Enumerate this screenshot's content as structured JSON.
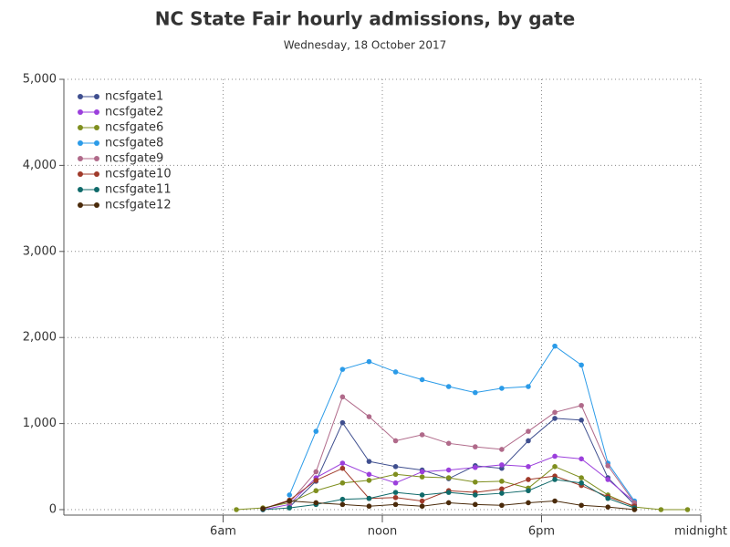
{
  "chart_data": {
    "type": "line",
    "title": "NC State Fair hourly admissions, by gate",
    "subtitle": "Wednesday, 18 October 2017",
    "x": [
      6.5,
      7.5,
      8.5,
      9.5,
      10.5,
      11.5,
      12.5,
      13.5,
      14.5,
      15.5,
      16.5,
      17.5,
      18.5,
      19.5,
      20.5,
      21.5,
      22.5,
      23.5
    ],
    "xlim": [
      0,
      24
    ],
    "xticks": [
      {
        "value": 6,
        "label": "6am"
      },
      {
        "value": 12,
        "label": "noon"
      },
      {
        "value": 18,
        "label": "6pm"
      },
      {
        "value": 24,
        "label": "midnight"
      }
    ],
    "ylim": [
      0,
      5000
    ],
    "yticks": [
      0,
      {
        "value": 1000,
        "label": "1,000"
      },
      {
        "value": 2000,
        "label": "2,000"
      },
      {
        "value": 3000,
        "label": "3,000"
      },
      {
        "value": 4000,
        "label": "4,000"
      },
      {
        "value": 5000,
        "label": "5,000"
      }
    ],
    "grid": true,
    "legend": "top-left",
    "series": [
      {
        "name": "ncsfgate1",
        "color": "#3f4f8f",
        "values": [
          null,
          null,
          30,
          330,
          1010,
          560,
          500,
          460,
          360,
          510,
          480,
          800,
          1060,
          1040,
          370,
          60,
          null,
          null
        ]
      },
      {
        "name": "ncsfgate2",
        "color": "#9b3fdc",
        "values": [
          null,
          0,
          60,
          370,
          540,
          410,
          310,
          440,
          460,
          490,
          520,
          500,
          620,
          590,
          350,
          90,
          null,
          null
        ]
      },
      {
        "name": "ncsfgate6",
        "color": "#7f8f1f",
        "values": [
          0,
          20,
          80,
          220,
          310,
          340,
          410,
          380,
          370,
          320,
          330,
          250,
          500,
          370,
          170,
          30,
          0,
          0
        ]
      },
      {
        "name": "ncsfgate8",
        "color": "#2b9be8",
        "values": [
          null,
          null,
          170,
          910,
          1630,
          1720,
          1600,
          1510,
          1430,
          1360,
          1410,
          1430,
          1900,
          1680,
          540,
          100,
          null,
          null
        ]
      },
      {
        "name": "ncsfgate9",
        "color": "#b06a8a",
        "values": [
          null,
          null,
          80,
          440,
          1310,
          1080,
          800,
          870,
          770,
          730,
          700,
          910,
          1130,
          1210,
          510,
          80,
          null,
          null
        ]
      },
      {
        "name": "ncsfgate10",
        "color": "#a03a2a",
        "values": [
          null,
          10,
          110,
          340,
          480,
          130,
          140,
          100,
          220,
          200,
          240,
          350,
          390,
          280,
          150,
          40,
          null,
          null
        ]
      },
      {
        "name": "ncsfgate11",
        "color": "#0f6a6a",
        "values": [
          null,
          0,
          20,
          60,
          120,
          130,
          200,
          170,
          200,
          170,
          190,
          220,
          350,
          310,
          130,
          20,
          null,
          null
        ]
      },
      {
        "name": "ncsfgate12",
        "color": "#4a2a0a",
        "values": [
          null,
          10,
          100,
          80,
          60,
          40,
          60,
          40,
          80,
          60,
          50,
          80,
          100,
          50,
          30,
          0,
          null,
          null
        ]
      }
    ]
  }
}
